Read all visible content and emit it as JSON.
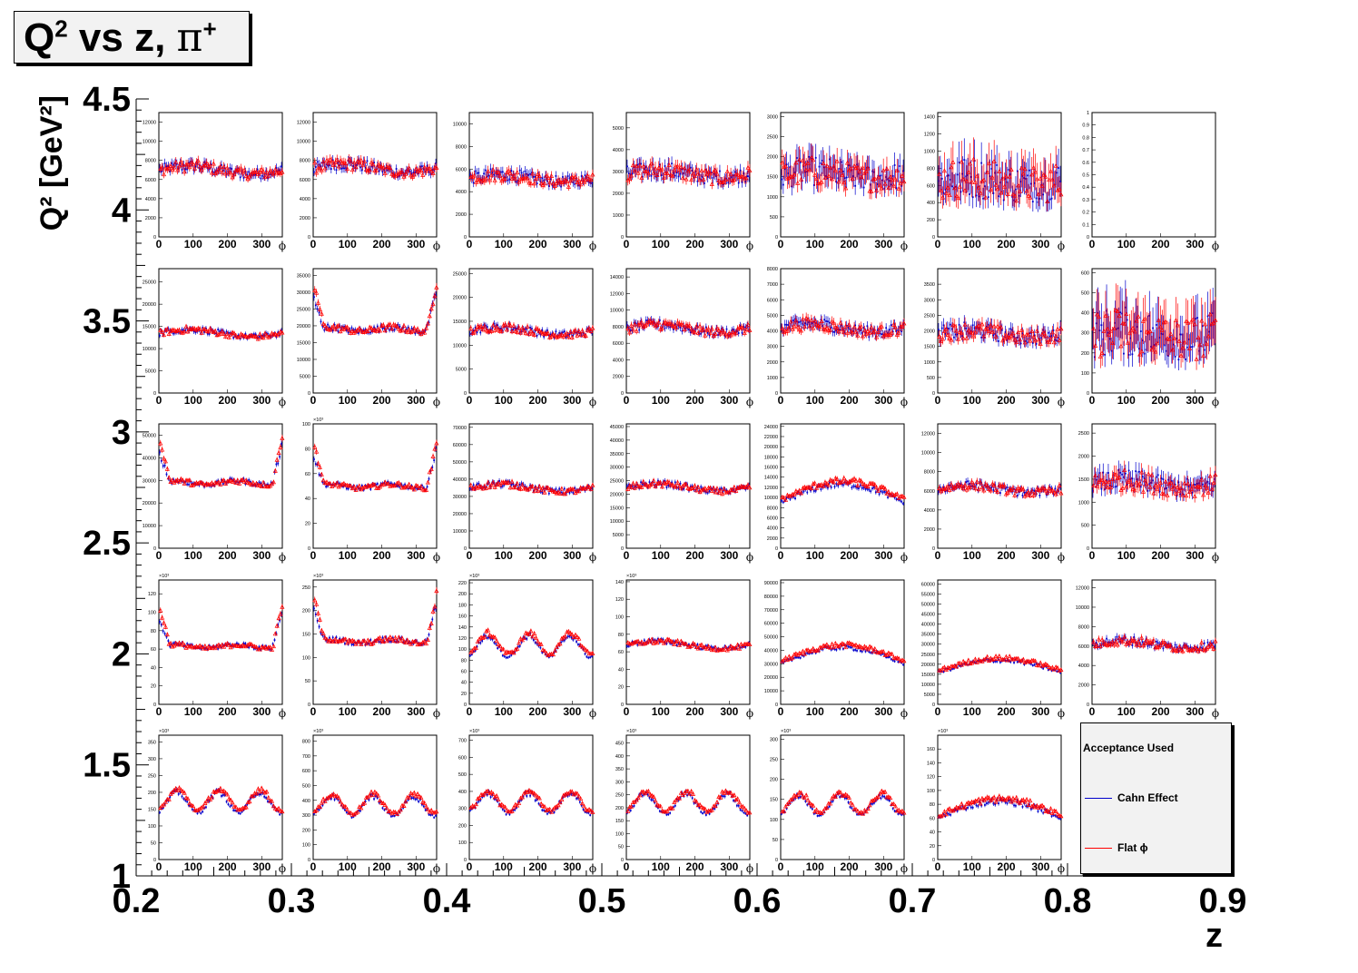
{
  "title": {
    "main": "Q",
    "sup": "2",
    "rest": " vs z, ",
    "symbol": "π",
    "sup2": "+"
  },
  "axes": {
    "xlabel": "z",
    "ylabel": "Q² [GeV²]",
    "xticks": [
      "0.2",
      "0.3",
      "0.4",
      "0.5",
      "0.6",
      "0.7",
      "0.8",
      "0.9"
    ],
    "yticks": [
      "1",
      "1.5",
      "2",
      "2.5",
      "3",
      "3.5",
      "4",
      "4.5"
    ]
  },
  "legend": {
    "title": "Acceptance Used",
    "entries": [
      {
        "label": "Cahn Effect",
        "color": "#0000cc"
      },
      {
        "label": "Flat ϕ",
        "color": "#ff0000"
      }
    ]
  },
  "colors": {
    "cahn": "#0000cc",
    "flat": "#ff0000",
    "frame": "#000000",
    "legend_bg": "#f2f2f2"
  },
  "chart_data": {
    "type": "scatter",
    "title": "Q² vs z, π⁺",
    "xlabel": "z",
    "ylabel": "Q² [GeV²]",
    "xlim": [
      0.2,
      0.9
    ],
    "ylim": [
      1,
      4.5
    ],
    "panel_xlabel": "ϕ",
    "panel_xticks": [
      0,
      100,
      200,
      300
    ],
    "panel_xlim": [
      0,
      360
    ],
    "series_names": [
      "Cahn Effect",
      "Flat ϕ"
    ],
    "rows_q2": [
      [
        4,
        4.5
      ],
      [
        3.3,
        3.85
      ],
      [
        2.6,
        3.15
      ],
      [
        1.9,
        2.45
      ],
      [
        1.15,
        1.7
      ]
    ],
    "cols_z": [
      [
        0.2,
        0.3
      ],
      [
        0.3,
        0.4
      ],
      [
        0.4,
        0.5
      ],
      [
        0.5,
        0.6
      ],
      [
        0.6,
        0.7
      ],
      [
        0.7,
        0.8
      ],
      [
        0.8,
        0.9
      ]
    ],
    "panels": [
      {
        "row": 0,
        "col": 0,
        "ymax": 13000,
        "yticks": [
          "0",
          "2000",
          "4000",
          "6000",
          "8000",
          "10000",
          "12000"
        ],
        "level": 7000,
        "shape": "flat",
        "noise": 0.08,
        "exp": ""
      },
      {
        "row": 0,
        "col": 1,
        "ymax": 13000,
        "yticks": [
          "0",
          "2000",
          "4000",
          "6000",
          "8000",
          "10000",
          "12000"
        ],
        "level": 7200,
        "shape": "flat",
        "noise": 0.08,
        "exp": ""
      },
      {
        "row": 0,
        "col": 2,
        "ymax": 11000,
        "yticks": [
          "0",
          "2000",
          "4000",
          "6000",
          "8000",
          "10000"
        ],
        "level": 5200,
        "shape": "flat",
        "noise": 0.1,
        "exp": ""
      },
      {
        "row": 0,
        "col": 3,
        "ymax": 5700,
        "yticks": [
          "0",
          "1000",
          "2000",
          "3000",
          "4000",
          "5000"
        ],
        "level": 2900,
        "shape": "flat",
        "noise": 0.12,
        "exp": ""
      },
      {
        "row": 0,
        "col": 4,
        "ymax": 3100,
        "yticks": [
          "0",
          "500",
          "1000",
          "1500",
          "2000",
          "2500",
          "3000"
        ],
        "level": 1550,
        "shape": "flat",
        "noise": 0.22,
        "exp": ""
      },
      {
        "row": 0,
        "col": 5,
        "ymax": 1450,
        "yticks": [
          "0",
          "200",
          "400",
          "600",
          "800",
          "1000",
          "1200",
          "1400"
        ],
        "level": 650,
        "shape": "flat",
        "noise": 0.35,
        "exp": ""
      },
      {
        "row": 0,
        "col": 6,
        "ymax": 1,
        "yticks": [
          "0",
          "0.1",
          "0.2",
          "0.3",
          "0.4",
          "0.5",
          "0.6",
          "0.7",
          "0.8",
          "0.9",
          "1"
        ],
        "level": 0,
        "shape": "empty",
        "noise": 0,
        "exp": ""
      },
      {
        "row": 1,
        "col": 0,
        "ymax": 28000,
        "yticks": [
          "0",
          "5000",
          "10000",
          "15000",
          "20000",
          "25000"
        ],
        "level": 13500,
        "shape": "flat",
        "noise": 0.05,
        "exp": ""
      },
      {
        "row": 1,
        "col": 1,
        "ymax": 37000,
        "yticks": [
          "0",
          "5000",
          "10000",
          "15000",
          "20000",
          "25000",
          "30000",
          "35000"
        ],
        "level": 19000,
        "shape": "edges",
        "noise": 0.05,
        "exp": ""
      },
      {
        "row": 1,
        "col": 2,
        "ymax": 26000,
        "yticks": [
          "0",
          "5000",
          "10000",
          "15000",
          "20000",
          "25000"
        ],
        "level": 13000,
        "shape": "flat",
        "noise": 0.06,
        "exp": ""
      },
      {
        "row": 1,
        "col": 3,
        "ymax": 15000,
        "yticks": [
          "0",
          "2000",
          "4000",
          "6000",
          "8000",
          "10000",
          "12000",
          "14000"
        ],
        "level": 7800,
        "shape": "flat",
        "noise": 0.07,
        "exp": ""
      },
      {
        "row": 1,
        "col": 4,
        "ymax": 8000,
        "yticks": [
          "0",
          "1000",
          "2000",
          "3000",
          "4000",
          "5000",
          "6000",
          "7000",
          "8000"
        ],
        "level": 4200,
        "shape": "flat",
        "noise": 0.09,
        "exp": ""
      },
      {
        "row": 1,
        "col": 5,
        "ymax": 4000,
        "yticks": [
          "0",
          "500",
          "1000",
          "1500",
          "2000",
          "2500",
          "3000",
          "3500"
        ],
        "level": 1900,
        "shape": "flat",
        "noise": 0.13,
        "exp": ""
      },
      {
        "row": 1,
        "col": 6,
        "ymax": 620,
        "yticks": [
          "0",
          "100",
          "200",
          "300",
          "400",
          "500",
          "600"
        ],
        "level": 290,
        "shape": "flat",
        "noise": 0.4,
        "exp": ""
      },
      {
        "row": 2,
        "col": 0,
        "ymax": 55000,
        "yticks": [
          "0",
          "10000",
          "20000",
          "30000",
          "40000",
          "50000"
        ],
        "level": 29000,
        "shape": "edges",
        "noise": 0.04,
        "exp": ""
      },
      {
        "row": 2,
        "col": 1,
        "ymax": 100,
        "yticks": [
          "0",
          "20",
          "40",
          "60",
          "80",
          "100"
        ],
        "level": 50,
        "shape": "edges",
        "noise": 0.04,
        "exp": "×10³"
      },
      {
        "row": 2,
        "col": 2,
        "ymax": 72000,
        "yticks": [
          "0",
          "10000",
          "20000",
          "30000",
          "40000",
          "50000",
          "60000",
          "70000"
        ],
        "level": 35000,
        "shape": "flat",
        "noise": 0.05,
        "exp": ""
      },
      {
        "row": 2,
        "col": 3,
        "ymax": 46000,
        "yticks": [
          "0",
          "5000",
          "10000",
          "15000",
          "20000",
          "25000",
          "30000",
          "35000",
          "40000",
          "45000"
        ],
        "level": 22500,
        "shape": "flat",
        "noise": 0.05,
        "exp": ""
      },
      {
        "row": 2,
        "col": 4,
        "ymax": 24500,
        "yticks": [
          "0",
          "2000",
          "4000",
          "6000",
          "8000",
          "10000",
          "12000",
          "14000",
          "16000",
          "18000",
          "20000",
          "22000",
          "24000"
        ],
        "level": 12000,
        "shape": "dome",
        "noise": 0.05,
        "exp": ""
      },
      {
        "row": 2,
        "col": 5,
        "ymax": 13000,
        "yticks": [
          "0",
          "2000",
          "4000",
          "6000",
          "8000",
          "10000",
          "12000"
        ],
        "level": 6200,
        "shape": "flat",
        "noise": 0.07,
        "exp": ""
      },
      {
        "row": 2,
        "col": 6,
        "ymax": 2700,
        "yticks": [
          "0",
          "500",
          "1000",
          "1500",
          "2000",
          "2500"
        ],
        "level": 1400,
        "shape": "flat",
        "noise": 0.15,
        "exp": ""
      },
      {
        "row": 3,
        "col": 0,
        "ymax": 135,
        "yticks": [
          "0",
          "20",
          "40",
          "60",
          "80",
          "100",
          "120"
        ],
        "level": 63,
        "shape": "edges",
        "noise": 0.04,
        "exp": "×10³"
      },
      {
        "row": 3,
        "col": 1,
        "ymax": 265,
        "yticks": [
          "0",
          "50",
          "100",
          "150",
          "200",
          "250"
        ],
        "level": 135,
        "shape": "edges",
        "noise": 0.04,
        "exp": "×10³"
      },
      {
        "row": 3,
        "col": 2,
        "ymax": 225,
        "yticks": [
          "0",
          "20",
          "40",
          "60",
          "80",
          "100",
          "120",
          "140",
          "160",
          "180",
          "200",
          "220"
        ],
        "level": 105,
        "shape": "wave",
        "noise": 0.04,
        "exp": "×10³"
      },
      {
        "row": 3,
        "col": 3,
        "ymax": 142,
        "yticks": [
          "0",
          "20",
          "40",
          "60",
          "80",
          "100",
          "120",
          "140"
        ],
        "level": 68,
        "shape": "flat",
        "noise": 0.04,
        "exp": "×10³"
      },
      {
        "row": 3,
        "col": 4,
        "ymax": 92000,
        "yticks": [
          "0",
          "10000",
          "20000",
          "30000",
          "40000",
          "50000",
          "60000",
          "70000",
          "80000",
          "90000"
        ],
        "level": 40000,
        "shape": "dome",
        "noise": 0.04,
        "exp": ""
      },
      {
        "row": 3,
        "col": 5,
        "ymax": 62000,
        "yticks": [
          "0",
          "5000",
          "10000",
          "15000",
          "20000",
          "25000",
          "30000",
          "35000",
          "40000",
          "45000",
          "50000",
          "55000",
          "60000"
        ],
        "level": 21000,
        "shape": "dome",
        "noise": 0.05,
        "exp": ""
      },
      {
        "row": 3,
        "col": 6,
        "ymax": 12800,
        "yticks": [
          "0",
          "2000",
          "4000",
          "6000",
          "8000",
          "10000",
          "12000"
        ],
        "level": 6200,
        "shape": "flat",
        "noise": 0.07,
        "exp": ""
      },
      {
        "row": 4,
        "col": 0,
        "ymax": 370,
        "yticks": [
          "0",
          "50",
          "100",
          "150",
          "200",
          "250",
          "300",
          "350"
        ],
        "level": 170,
        "shape": "wave",
        "noise": 0.04,
        "exp": "×10³"
      },
      {
        "row": 4,
        "col": 1,
        "ymax": 840,
        "yticks": [
          "0",
          "100",
          "200",
          "300",
          "400",
          "500",
          "600",
          "700",
          "800"
        ],
        "level": 360,
        "shape": "wave",
        "noise": 0.04,
        "exp": "×10³"
      },
      {
        "row": 4,
        "col": 2,
        "ymax": 730,
        "yticks": [
          "0",
          "100",
          "200",
          "300",
          "400",
          "500",
          "600",
          "700"
        ],
        "level": 330,
        "shape": "wave",
        "noise": 0.04,
        "exp": "×10³"
      },
      {
        "row": 4,
        "col": 3,
        "ymax": 480,
        "yticks": [
          "0",
          "50",
          "100",
          "150",
          "200",
          "250",
          "300",
          "350",
          "400",
          "450"
        ],
        "level": 215,
        "shape": "wave",
        "noise": 0.04,
        "exp": "×10³"
      },
      {
        "row": 4,
        "col": 4,
        "ymax": 310,
        "yticks": [
          "0",
          "50",
          "100",
          "150",
          "200",
          "250",
          "300"
        ],
        "level": 135,
        "shape": "wave",
        "noise": 0.04,
        "exp": "×10³"
      },
      {
        "row": 4,
        "col": 5,
        "ymax": 180,
        "yticks": [
          "0",
          "20",
          "40",
          "60",
          "80",
          "100",
          "120",
          "140",
          "160"
        ],
        "level": 80,
        "shape": "dome",
        "noise": 0.05,
        "exp": "×10³"
      }
    ]
  }
}
